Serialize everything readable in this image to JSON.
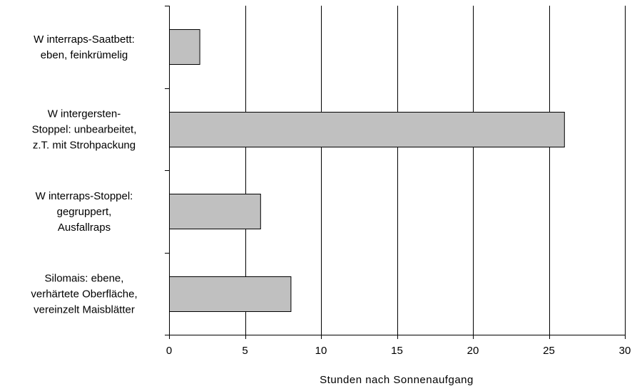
{
  "chart_data": {
    "type": "bar",
    "orientation": "horizontal",
    "categories": [
      [
        "W interraps-Saatbett:",
        "eben, feinkrümelig"
      ],
      [
        "W intergersten-",
        "Stoppel: unbearbeitet,",
        "z.T. mit Strohpackung"
      ],
      [
        "W interraps-Stoppel:",
        "gegruppert,",
        "Ausfallraps"
      ],
      [
        "Silomais: ebene,",
        "verhärtete Oberfläche,",
        "vereinzelt Maisblätter"
      ]
    ],
    "values": [
      2,
      26,
      6,
      8
    ],
    "xlabel": "Stunden nach Sonnenaufgang",
    "xlim": [
      0,
      30
    ],
    "xticks": [
      0,
      5,
      10,
      15,
      20,
      25,
      30
    ],
    "grid": "vertical",
    "bar_color": "#c0c0c0",
    "bar_edge_color": "#000000"
  }
}
